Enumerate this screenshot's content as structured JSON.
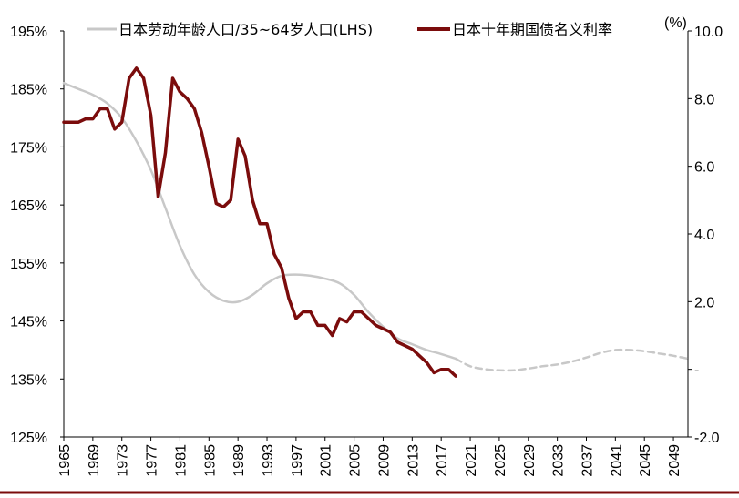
{
  "chart_data": {
    "type": "line",
    "x_range": [
      1965,
      2051
    ],
    "x_ticks": [
      "1965",
      "1969",
      "1973",
      "1977",
      "1981",
      "1985",
      "1989",
      "1993",
      "1997",
      "2001",
      "2005",
      "2009",
      "2013",
      "2017",
      "2021",
      "2025",
      "2029",
      "2033",
      "2037",
      "2041",
      "2045",
      "2049"
    ],
    "left_axis": {
      "label": "",
      "ylim": [
        125,
        195
      ],
      "ticks": [
        125,
        135,
        145,
        155,
        165,
        175,
        185,
        195
      ],
      "tick_labels": [
        "125%",
        "135%",
        "145%",
        "155%",
        "165%",
        "175%",
        "185%",
        "195%"
      ]
    },
    "right_axis": {
      "unit": "(%)",
      "ylim": [
        -2.0,
        10.0
      ],
      "ticks": [
        -2.0,
        0.0,
        2.0,
        4.0,
        6.0,
        8.0,
        10.0
      ],
      "tick_labels": [
        "-2.0",
        "-",
        "2.0",
        "4.0",
        "6.0",
        "8.0",
        "10.0"
      ]
    },
    "series": [
      {
        "name": "日本劳动年龄人口/35~64岁人口(LHS)",
        "axis": "left",
        "color": "#c8c8c8",
        "style": "solid",
        "x": [
          1965,
          1967,
          1969,
          1971,
          1973,
          1975,
          1977,
          1979,
          1981,
          1983,
          1985,
          1987,
          1989,
          1991,
          1993,
          1995,
          1997,
          1999,
          2001,
          2003,
          2005,
          2007,
          2009,
          2011,
          2013,
          2015,
          2017,
          2019
        ],
        "y": [
          186,
          185,
          184,
          182.5,
          180,
          176,
          171,
          164.5,
          158,
          153,
          150,
          148.5,
          148.3,
          149.5,
          151.5,
          152.8,
          153,
          152.8,
          152.3,
          151.5,
          149.5,
          146.5,
          144,
          142,
          141,
          140,
          139.3,
          138.5
        ]
      },
      {
        "name": "日本劳动年龄人口/35~64岁人口(LHS) 预测",
        "axis": "left",
        "color": "#c8c8c8",
        "style": "dashed",
        "x": [
          2019,
          2021,
          2023,
          2025,
          2027,
          2029,
          2031,
          2033,
          2035,
          2037,
          2039,
          2041,
          2043,
          2045,
          2047,
          2049,
          2051
        ],
        "y": [
          138.5,
          137.2,
          136.7,
          136.5,
          136.5,
          136.8,
          137.2,
          137.5,
          138,
          138.7,
          139.5,
          140,
          140,
          139.8,
          139.4,
          139,
          138.5
        ]
      },
      {
        "name": "日本十年期国债名义利率",
        "axis": "right",
        "color": "#7b0c0c",
        "style": "solid",
        "x": [
          1965,
          1967,
          1968,
          1969,
          1970,
          1971,
          1972,
          1973,
          1974,
          1975,
          1976,
          1977,
          1978,
          1979,
          1980,
          1981,
          1982,
          1983,
          1984,
          1985,
          1986,
          1987,
          1988,
          1989,
          1990,
          1991,
          1992,
          1993,
          1994,
          1995,
          1996,
          1997,
          1998,
          1999,
          2000,
          2001,
          2002,
          2003,
          2004,
          2005,
          2006,
          2007,
          2008,
          2009,
          2010,
          2011,
          2012,
          2013,
          2014,
          2015,
          2016,
          2017,
          2018,
          2019
        ],
        "y": [
          7.3,
          7.3,
          7.4,
          7.4,
          7.7,
          7.7,
          7.1,
          7.3,
          8.6,
          8.9,
          8.6,
          7.5,
          5.1,
          6.4,
          8.6,
          8.2,
          8.0,
          7.7,
          7.0,
          6.0,
          4.9,
          4.8,
          5.0,
          6.8,
          6.3,
          5.0,
          4.3,
          4.3,
          3.4,
          3.0,
          2.1,
          1.5,
          1.7,
          1.7,
          1.3,
          1.3,
          1.0,
          1.5,
          1.4,
          1.7,
          1.7,
          1.5,
          1.3,
          1.2,
          1.1,
          0.8,
          0.7,
          0.6,
          0.4,
          0.2,
          -0.1,
          0.0,
          0.0,
          -0.2
        ]
      }
    ],
    "legend": [
      "日本劳动年龄人口/35~64岁人口(LHS)",
      "日本十年期国债名义利率"
    ]
  }
}
